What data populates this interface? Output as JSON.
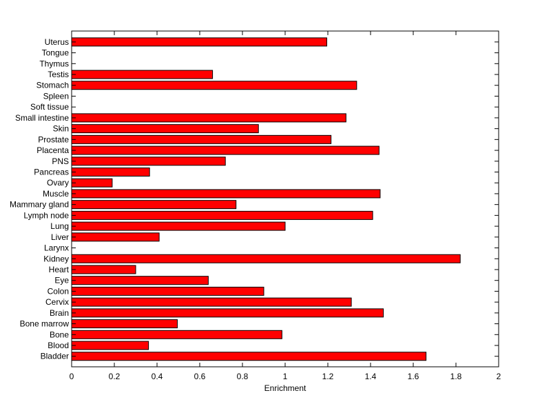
{
  "chart_data": {
    "type": "bar",
    "orientation": "horizontal",
    "categories": [
      "Bladder",
      "Blood",
      "Bone",
      "Bone marrow",
      "Brain",
      "Cervix",
      "Colon",
      "Eye",
      "Heart",
      "Kidney",
      "Larynx",
      "Liver",
      "Lung",
      "Lymph node",
      "Mammary gland",
      "Muscle",
      "Ovary",
      "Pancreas",
      "PNS",
      "Placenta",
      "Prostate",
      "Skin",
      "Small intestine",
      "Soft tissue",
      "Spleen",
      "Stomach",
      "Testis",
      "Thymus",
      "Tongue",
      "Uterus"
    ],
    "values": [
      1.66,
      0.36,
      0.985,
      0.495,
      1.46,
      1.31,
      0.9,
      0.64,
      0.3,
      1.82,
      0,
      0.41,
      1.0,
      1.41,
      0.77,
      1.445,
      0.19,
      0.365,
      0.72,
      1.44,
      1.215,
      0.875,
      1.285,
      0,
      0,
      1.335,
      0.66,
      0,
      0,
      1.195
    ],
    "xlabel": "Enrichment",
    "ylabel": "",
    "title": "",
    "xlim": [
      0,
      2
    ],
    "xticks": [
      "0",
      "0.2",
      "0.4",
      "0.6",
      "0.8",
      "1",
      "1.2",
      "1.4",
      "1.6",
      "1.8",
      "2"
    ],
    "bar_color": "#ff0000",
    "grid": false
  }
}
